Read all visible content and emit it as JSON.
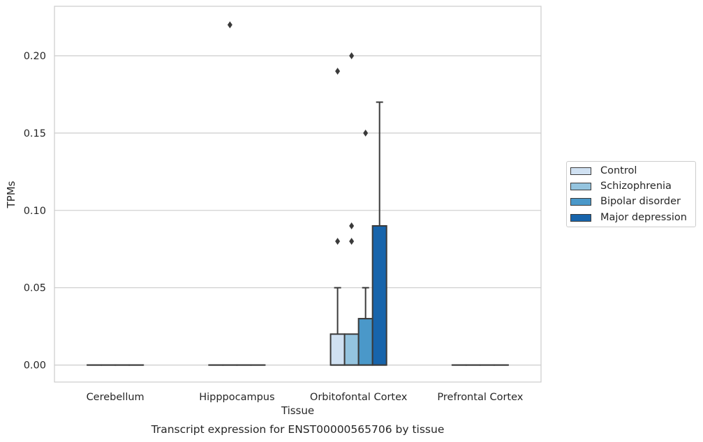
{
  "chart_data": {
    "type": "box",
    "title": "",
    "caption": "Transcript expression for ENST00000565706 by tissue",
    "xlabel": "Tissue",
    "ylabel": "TPMs",
    "ylim": [
      -0.011,
      0.232
    ],
    "yticks": [
      "0.00",
      "0.05",
      "0.10",
      "0.15",
      "0.20"
    ],
    "ytick_values": [
      0.0,
      0.05,
      0.1,
      0.15,
      0.2
    ],
    "grid": true,
    "legend_position": "right",
    "categories": [
      "Cerebellum",
      "Hipppocampus",
      "Orbitofontal Cortex",
      "Prefrontal Cortex"
    ],
    "series": [
      {
        "name": "Control",
        "color": "#d0e1f2",
        "boxes": [
          {
            "q1": 0,
            "median": 0,
            "q3": 0,
            "whislo": 0,
            "whishi": 0,
            "fliers": []
          },
          {
            "q1": 0,
            "median": 0,
            "q3": 0,
            "whislo": 0,
            "whishi": 0,
            "fliers": []
          },
          {
            "q1": 0,
            "median": 0,
            "q3": 0.02,
            "whislo": 0,
            "whishi": 0.05,
            "fliers": [
              0.08,
              0.19
            ]
          },
          {
            "q1": 0,
            "median": 0,
            "q3": 0,
            "whislo": 0,
            "whishi": 0,
            "fliers": []
          }
        ]
      },
      {
        "name": "Schizophrenia",
        "color": "#94c4df",
        "boxes": [
          {
            "q1": 0,
            "median": 0,
            "q3": 0,
            "whislo": 0,
            "whishi": 0,
            "fliers": []
          },
          {
            "q1": 0,
            "median": 0,
            "q3": 0,
            "whislo": 0,
            "whishi": 0,
            "fliers": [
              0.22
            ]
          },
          {
            "q1": 0,
            "median": 0,
            "q3": 0.02,
            "whislo": 0,
            "whishi": 0.02,
            "fliers": [
              0.08,
              0.09,
              0.2
            ]
          },
          {
            "q1": 0,
            "median": 0,
            "q3": 0,
            "whislo": 0,
            "whishi": 0,
            "fliers": []
          }
        ]
      },
      {
        "name": "Bipolar disorder",
        "color": "#4a98c9",
        "boxes": [
          {
            "q1": 0,
            "median": 0,
            "q3": 0,
            "whislo": 0,
            "whishi": 0,
            "fliers": []
          },
          {
            "q1": 0,
            "median": 0,
            "q3": 0,
            "whislo": 0,
            "whishi": 0,
            "fliers": []
          },
          {
            "q1": 0,
            "median": 0,
            "q3": 0.03,
            "whislo": 0,
            "whishi": 0.05,
            "fliers": [
              0.15
            ]
          },
          {
            "q1": 0,
            "median": 0,
            "q3": 0,
            "whislo": 0,
            "whishi": 0,
            "fliers": []
          }
        ]
      },
      {
        "name": "Major depression",
        "color": "#1764ab",
        "boxes": [
          {
            "q1": 0,
            "median": 0,
            "q3": 0,
            "whislo": 0,
            "whishi": 0,
            "fliers": []
          },
          {
            "q1": 0,
            "median": 0,
            "q3": 0,
            "whislo": 0,
            "whishi": 0,
            "fliers": []
          },
          {
            "q1": 0,
            "median": 0,
            "q3": 0.09,
            "whislo": 0,
            "whishi": 0.17,
            "fliers": []
          },
          {
            "q1": 0,
            "median": 0,
            "q3": 0,
            "whislo": 0,
            "whishi": 0,
            "fliers": []
          }
        ]
      }
    ]
  }
}
